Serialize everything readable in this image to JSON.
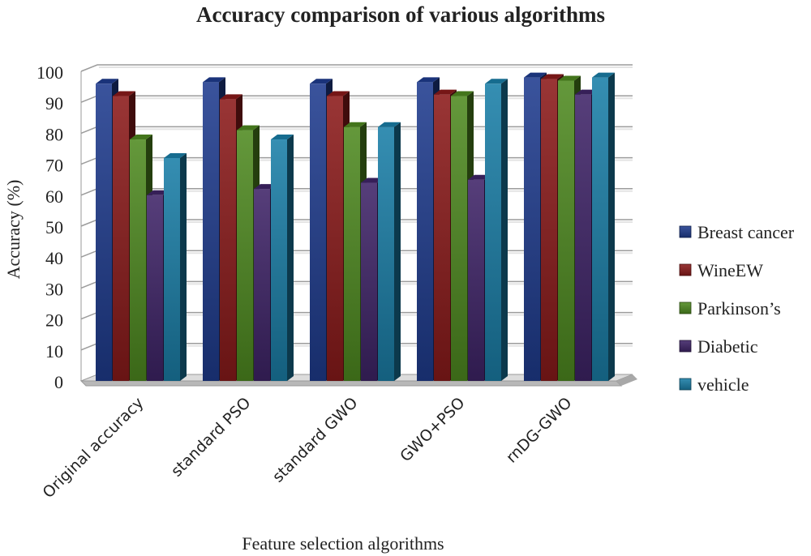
{
  "chart_data": {
    "type": "bar",
    "title": "Accuracy comparison of various algorithms",
    "xlabel": "Feature selection algorithms",
    "ylabel": "Accuracy (%)",
    "ylim": [
      0,
      100
    ],
    "yticks": [
      0,
      10,
      20,
      30,
      40,
      50,
      60,
      70,
      80,
      90,
      100
    ],
    "grid": true,
    "legend_position": "right",
    "categories": [
      "Original accuracy",
      "standard PSO",
      "standard GWO",
      "GWO+PSO",
      "rnDG-GWO"
    ],
    "series": [
      {
        "name": "Breast cancer",
        "color": "#1f3c8f",
        "values": [
          96,
          96.5,
          96,
          96.5,
          98
        ]
      },
      {
        "name": "WineEW",
        "color": "#8b1a1a",
        "values": [
          92,
          91,
          92,
          92.5,
          97.5
        ]
      },
      {
        "name": "Parkinson’s",
        "color": "#4f8a20",
        "values": [
          78,
          81,
          82,
          92,
          97
        ]
      },
      {
        "name": "Diabetic",
        "color": "#3f2468",
        "values": [
          60,
          62,
          64,
          65,
          92.5
        ]
      },
      {
        "name": "vehicle",
        "color": "#1a7fa8",
        "values": [
          72,
          78,
          82,
          96,
          98
        ]
      }
    ]
  }
}
